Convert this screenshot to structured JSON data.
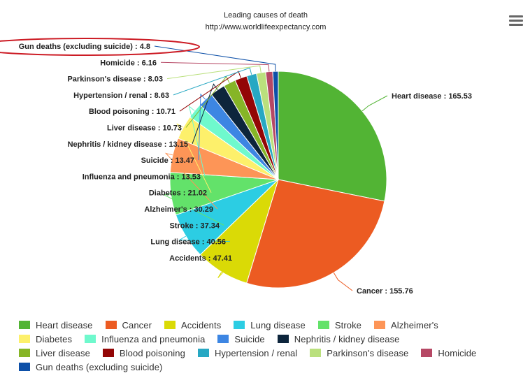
{
  "menu": {
    "icon": "hamburger-menu-icon"
  },
  "chart_data": {
    "type": "pie",
    "title": "Leading causes of death",
    "subtitle": "http://www.worldlifeexpectancy.com",
    "legend_position": "bottom",
    "slices": [
      {
        "name": "Heart disease",
        "value": 165.53,
        "color": "#52b434",
        "label": "Heart disease : 165.53"
      },
      {
        "name": "Cancer",
        "value": 155.76,
        "color": "#ec5b22",
        "label": "Cancer : 155.76"
      },
      {
        "name": "Accidents",
        "value": 47.41,
        "color": "#dada06",
        "label": "Accidents : 47.41"
      },
      {
        "name": "Lung disease",
        "value": 40.56,
        "color": "#2ccde3",
        "label": "Lung disease : 40.56"
      },
      {
        "name": "Stroke",
        "value": 37.34,
        "color": "#63e26a",
        "label": "Stroke : 37.34"
      },
      {
        "name": "Alzheimer's",
        "value": 30.29,
        "color": "#fd9557",
        "label": "Alzheimer's : 30.29"
      },
      {
        "name": "Diabetes",
        "value": 21.02,
        "color": "#fdf06b",
        "label": "Diabetes : 21.02"
      },
      {
        "name": "Influenza and pneumonia",
        "value": 13.53,
        "color": "#6ff9cd",
        "label": "Influenza and pneumonia : 13.53"
      },
      {
        "name": "Suicide",
        "value": 13.47,
        "color": "#3d86e3",
        "label": "Suicide : 13.47"
      },
      {
        "name": "Nephritis / kidney disease",
        "value": 13.15,
        "color": "#0d253c",
        "label": "Nephritis / kidney disease : 13.15"
      },
      {
        "name": "Liver disease",
        "value": 10.73,
        "color": "#86b527",
        "label": "Liver disease : 10.73"
      },
      {
        "name": "Blood poisoning",
        "value": 10.71,
        "color": "#930606",
        "label": "Blood poisoning : 10.71"
      },
      {
        "name": "Hypertension / renal",
        "value": 8.63,
        "color": "#27a8c3",
        "label": "Hypertension / renal : 8.63"
      },
      {
        "name": "Parkinson's disease",
        "value": 8.03,
        "color": "#bae07d",
        "label": "Parkinson's disease : 8.03"
      },
      {
        "name": "Homicide",
        "value": 6.16,
        "color": "#b64865",
        "label": "Homicide : 6.16"
      },
      {
        "name": "Gun deaths (excluding suicide)",
        "value": 4.8,
        "color": "#0d50a8",
        "label": "Gun deaths (excluding suicide) : 4.8"
      }
    ],
    "highlight": {
      "target": "Gun deaths (excluding suicide)",
      "shape": "ellipse",
      "color": "#cc1b24"
    }
  },
  "legend_rows": [
    [
      "Heart disease",
      "Cancer",
      "Accidents",
      "Lung disease",
      "Stroke",
      "Alzheimer's"
    ],
    [
      "Diabetes",
      "Influenza and pneumonia",
      "Suicide",
      "Nephritis / kidney disease"
    ],
    [
      "Liver disease",
      "Blood poisoning",
      "Hypertension / renal",
      "Parkinson's disease",
      "Homicide"
    ],
    [
      "Gun deaths (excluding suicide)"
    ]
  ]
}
